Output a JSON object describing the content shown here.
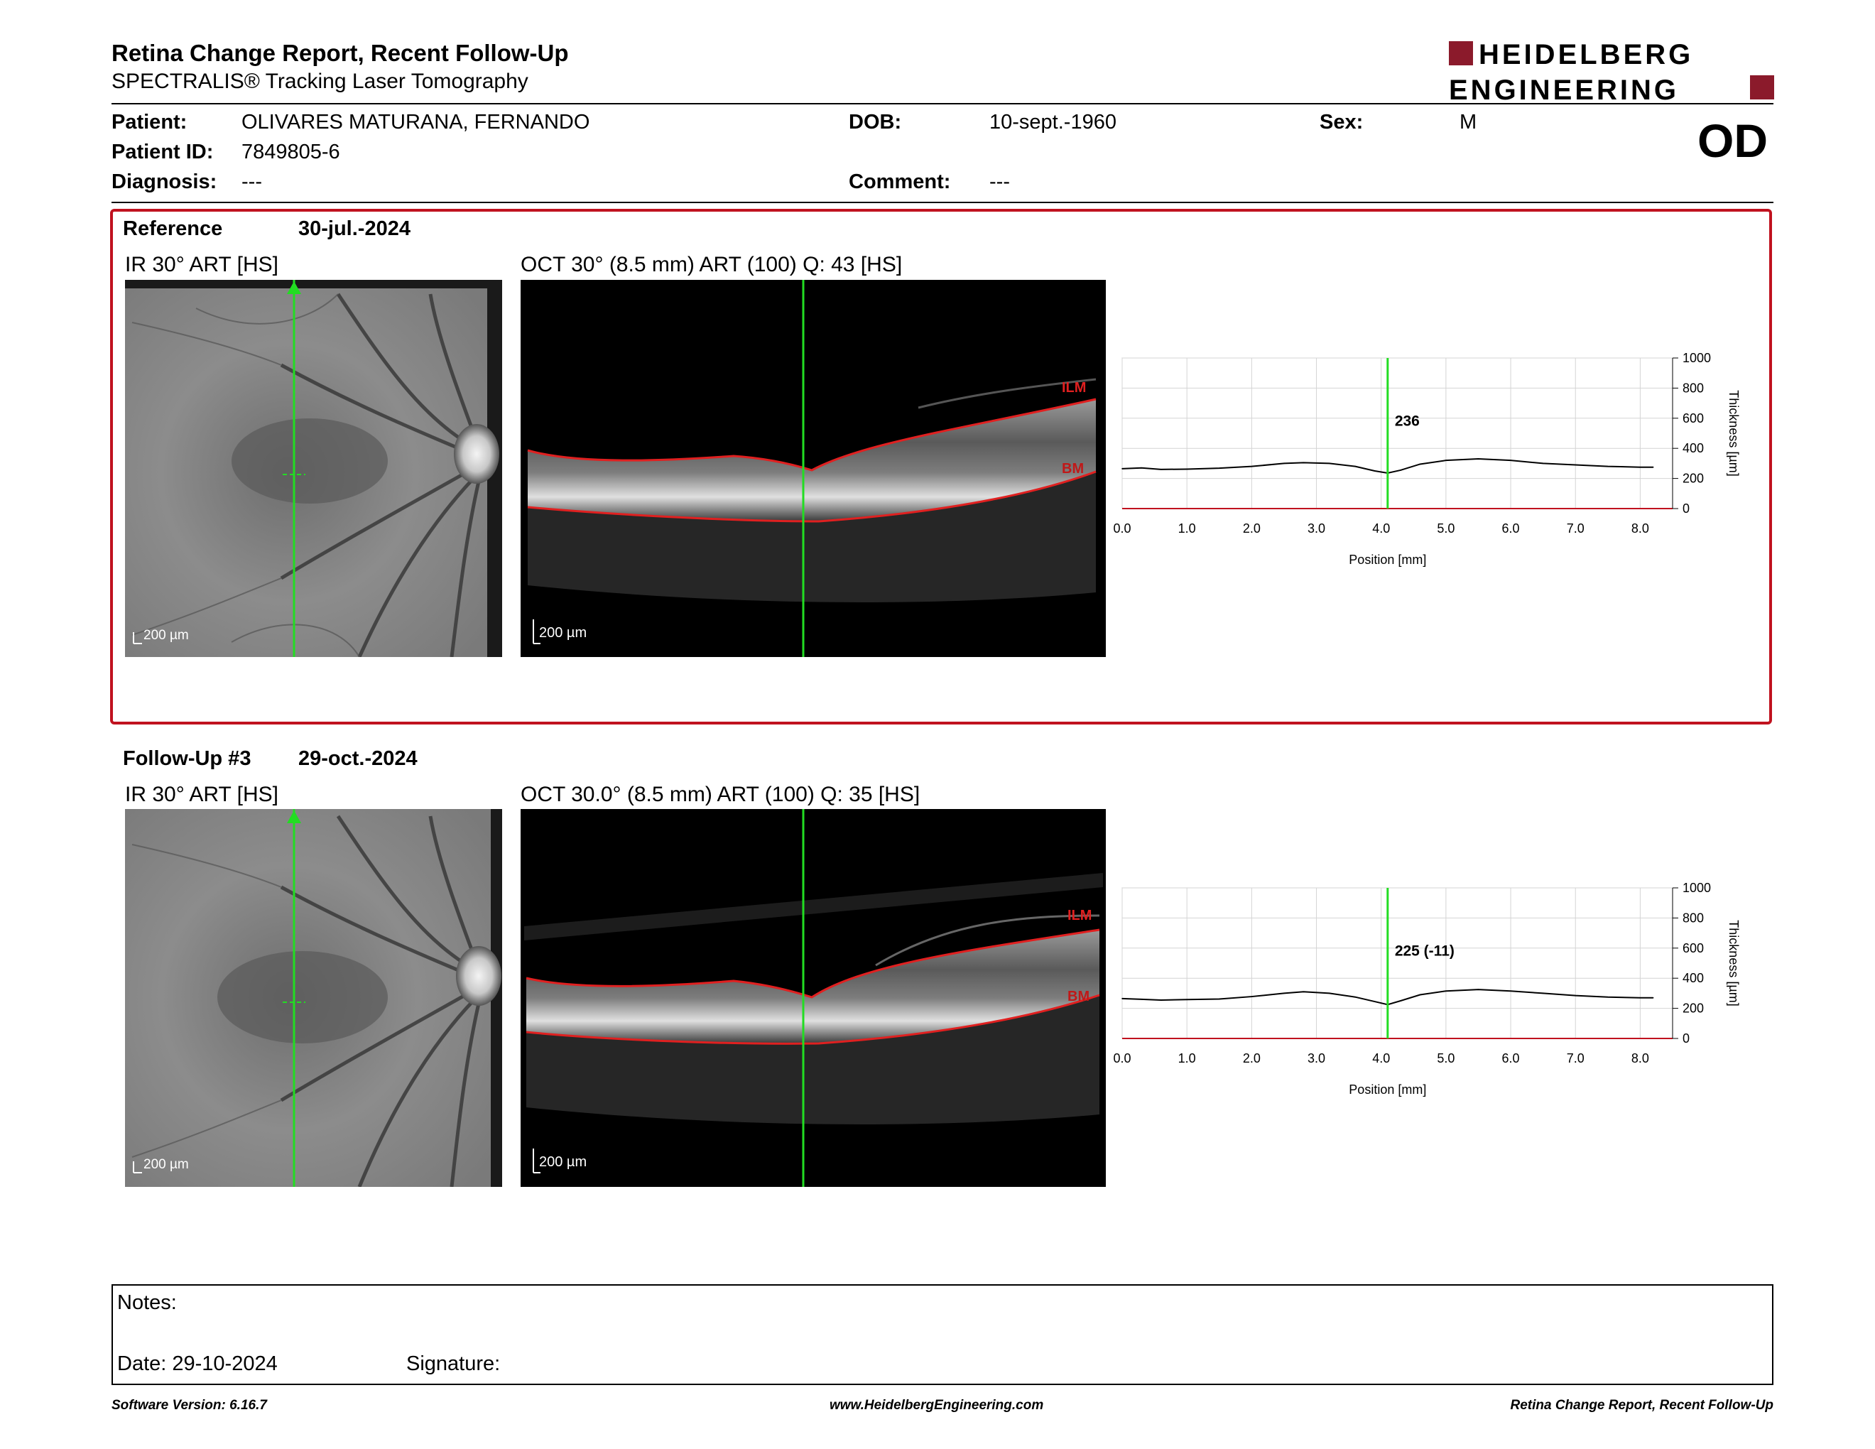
{
  "header": {
    "title": "Retina Change Report, Recent Follow-Up",
    "subtitle": "SPECTRALIS® Tracking Laser Tomography",
    "logo_line1": "HEIDELBERG",
    "logo_line2": "ENGINEERING",
    "brand_color": "#8b1a2b"
  },
  "patient": {
    "patient_label": "Patient:",
    "patient_value": "OLIVARES MATURANA, FERNANDO",
    "id_label": "Patient ID:",
    "id_value": "7849805-6",
    "diagnosis_label": "Diagnosis:",
    "diagnosis_value": "---",
    "dob_label": "DOB:",
    "dob_value": "10-sept.-1960",
    "comment_label": "Comment:",
    "comment_value": "---",
    "sex_label": "Sex:",
    "sex_value": "M",
    "eye": "OD"
  },
  "reference": {
    "label": "Reference",
    "date": "30-jul.-2024",
    "ir_title": "IR 30° ART [HS]",
    "oct_title": "OCT 30° (8.5 mm) ART (100) Q: 43 [HS]",
    "scale_ir": "200 µm",
    "scale_oct": "200 µm",
    "ilm_label": "ILM",
    "bm_label": "BM",
    "highlight_color": "#c0121f"
  },
  "followup": {
    "label": "Follow-Up #3",
    "date": "29-oct.-2024",
    "ir_title": "IR 30° ART [HS]",
    "oct_title": "OCT 30.0° (8.5 mm) ART (100) Q: 35 [HS]",
    "scale_ir": "200 µm",
    "scale_oct": "200 µm",
    "ilm_label": "ILM",
    "bm_label": "BM"
  },
  "chart_data": [
    {
      "type": "line",
      "xlabel": "Position [mm]",
      "ylabel": "Thickness [µm]",
      "xlim": [
        0,
        8.5
      ],
      "ylim": [
        0,
        1000
      ],
      "x_ticks": [
        "0.0",
        "1.0",
        "2.0",
        "3.0",
        "4.0",
        "5.0",
        "6.0",
        "7.0",
        "8.0"
      ],
      "y_ticks": [
        "0",
        "200",
        "400",
        "600",
        "800",
        "1000"
      ],
      "cursor_x": 4.1,
      "cursor_label": "236",
      "series": [
        {
          "x": [
            0.0,
            0.3,
            0.6,
            1.0,
            1.5,
            2.0,
            2.5,
            2.8,
            3.2,
            3.6,
            3.9,
            4.1,
            4.3,
            4.6,
            5.0,
            5.5,
            6.0,
            6.5,
            7.0,
            7.5,
            8.0,
            8.2
          ],
          "values": [
            265,
            270,
            260,
            262,
            268,
            280,
            300,
            305,
            300,
            280,
            250,
            236,
            255,
            295,
            320,
            330,
            320,
            300,
            290,
            280,
            275,
            275
          ]
        }
      ]
    },
    {
      "type": "line",
      "xlabel": "Position [mm]",
      "ylabel": "Thickness [µm]",
      "xlim": [
        0,
        8.5
      ],
      "ylim": [
        0,
        1000
      ],
      "x_ticks": [
        "0.0",
        "1.0",
        "2.0",
        "3.0",
        "4.0",
        "5.0",
        "6.0",
        "7.0",
        "8.0"
      ],
      "y_ticks": [
        "0",
        "200",
        "400",
        "600",
        "800",
        "1000"
      ],
      "cursor_x": 4.1,
      "cursor_label": "225 (-11)",
      "series": [
        {
          "x": [
            0.0,
            0.3,
            0.6,
            1.0,
            1.5,
            2.0,
            2.5,
            2.8,
            3.2,
            3.6,
            3.9,
            4.1,
            4.3,
            4.6,
            5.0,
            5.5,
            6.0,
            6.5,
            7.0,
            7.5,
            8.0,
            8.2
          ],
          "values": [
            265,
            260,
            255,
            258,
            262,
            278,
            300,
            310,
            300,
            275,
            245,
            225,
            250,
            290,
            315,
            325,
            315,
            300,
            285,
            275,
            270,
            270
          ]
        }
      ]
    }
  ],
  "notes": {
    "notes_label": "Notes:",
    "date_label": "Date: 29-10-2024",
    "signature_label": "Signature:"
  },
  "footer": {
    "software": "Software Version: 6.16.7",
    "website": "www.HeidelbergEngineering.com",
    "report_name": "Retina Change Report, Recent Follow-Up"
  }
}
